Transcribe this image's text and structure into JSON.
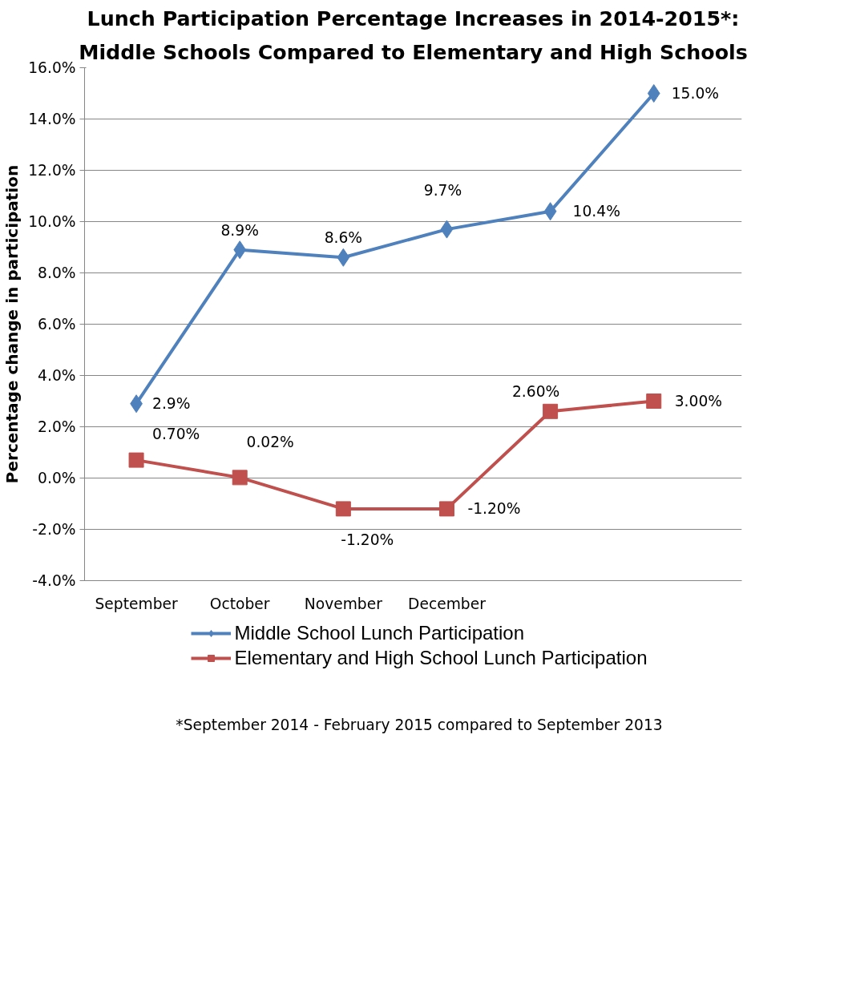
{
  "chart_data": {
    "type": "line",
    "title": "Lunch Participation Percentage Increases in 2014-2015*:",
    "subtitle": "Middle Schools Compared to Elementary and High Schools",
    "ylabel": "Percentage change in participation",
    "categories": [
      "September",
      "October",
      "November",
      "December",
      null,
      null
    ],
    "ylim": [
      -4,
      16
    ],
    "yticks": [
      {
        "value": -4,
        "label": "-4.0%"
      },
      {
        "value": -2,
        "label": "-2.0%"
      },
      {
        "value": 0,
        "label": "0.0%"
      },
      {
        "value": 2,
        "label": "2.0%"
      },
      {
        "value": 4,
        "label": "4.0%"
      },
      {
        "value": 6,
        "label": "6.0%"
      },
      {
        "value": 8,
        "label": "8.0%"
      },
      {
        "value": 10,
        "label": "10.0%"
      },
      {
        "value": 12,
        "label": "12.0%"
      },
      {
        "value": 14,
        "label": "14.0%"
      },
      {
        "value": 16,
        "label": "16.0%"
      }
    ],
    "series": [
      {
        "name": "Middle School Lunch Participation",
        "color": "#4f81bd",
        "marker": "diamond",
        "values": [
          2.9,
          8.9,
          8.6,
          9.7,
          10.4,
          15.0
        ],
        "value_labels": [
          "2.9%",
          "8.9%",
          "8.6%",
          "9.7%",
          "10.4%",
          "15.0%"
        ]
      },
      {
        "name": "Elementary and High School Lunch Participation",
        "color": "#c0504d",
        "marker": "square",
        "values": [
          0.7,
          0.02,
          -1.2,
          -1.2,
          2.6,
          3.0
        ],
        "value_labels": [
          "0.70%",
          "0.02%",
          "-1.20%",
          "-1.20%",
          "2.60%",
          "3.00%"
        ]
      }
    ],
    "grid": "y",
    "legend": "bottom",
    "line_style": "solid",
    "annotations": [
      "*September 2014 - February 2015 compared to September 2013"
    ]
  }
}
